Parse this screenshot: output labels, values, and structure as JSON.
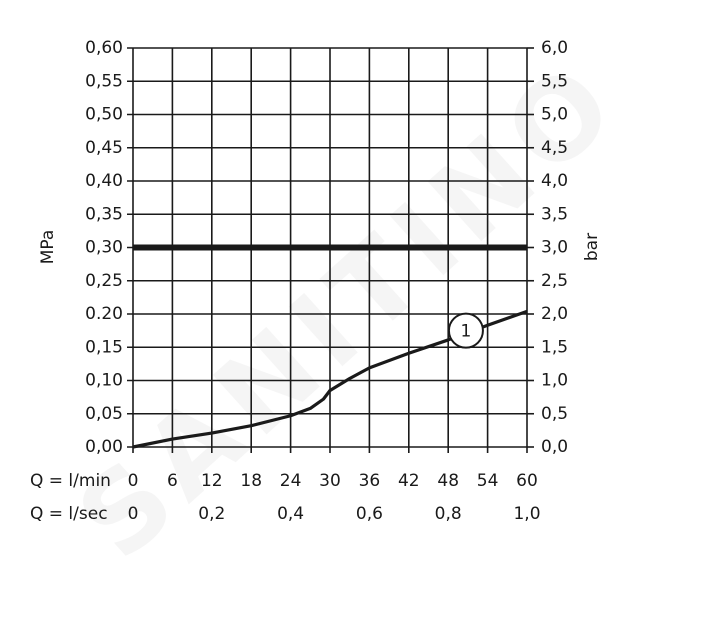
{
  "chart_data": {
    "type": "line",
    "watermark": "SANITINO",
    "ylabel": "MPa",
    "y2label": "bar",
    "xlabel": "Q = l/min",
    "x2label": "Q = l/sec",
    "xlim": [
      0,
      60
    ],
    "xticks": [
      0,
      6,
      12,
      18,
      24,
      30,
      36,
      42,
      48,
      54,
      60
    ],
    "x2lim": [
      0,
      1
    ],
    "x2ticks": [
      0,
      {
        "value": 0.2,
        "label": "0,2"
      },
      {
        "value": 0.4,
        "label": "0,4"
      },
      {
        "value": 0.6,
        "label": "0,6"
      },
      {
        "value": 0.8,
        "label": "0,8"
      },
      {
        "value": 1,
        "label": "1,0"
      }
    ],
    "ylim": [
      0,
      0.6
    ],
    "yticks": [
      {
        "value": 0,
        "label": "0,00"
      },
      {
        "value": 0.05,
        "label": "0,05"
      },
      {
        "value": 0.1,
        "label": "0,10"
      },
      {
        "value": 0.15,
        "label": "0,15"
      },
      {
        "value": 0.2,
        "label": "0.20"
      },
      {
        "value": 0.25,
        "label": "0,25"
      },
      {
        "value": 0.3,
        "label": "0,30"
      },
      {
        "value": 0.35,
        "label": "0,35"
      },
      {
        "value": 0.4,
        "label": "0,40"
      },
      {
        "value": 0.45,
        "label": "0,45"
      },
      {
        "value": 0.5,
        "label": "0,50"
      },
      {
        "value": 0.55,
        "label": "0,55"
      },
      {
        "value": 0.6,
        "label": "0,60"
      }
    ],
    "y2lim": [
      0,
      6
    ],
    "y2ticks": [
      {
        "value": 0,
        "label": "0,0"
      },
      {
        "value": 0.5,
        "label": "0,5"
      },
      {
        "value": 1,
        "label": "1,0"
      },
      {
        "value": 1.5,
        "label": "1,5"
      },
      {
        "value": 2,
        "label": "2,0"
      },
      {
        "value": 2.5,
        "label": "2,5"
      },
      {
        "value": 3,
        "label": "3,0"
      },
      {
        "value": 3.5,
        "label": "3,5"
      },
      {
        "value": 4,
        "label": "4,0"
      },
      {
        "value": 4.5,
        "label": "4,5"
      },
      {
        "value": 5,
        "label": "5,0"
      },
      {
        "value": 5.5,
        "label": "5,5"
      },
      {
        "value": 6,
        "label": "6,0"
      }
    ],
    "grid": true,
    "reference_line": {
      "y": 0.3,
      "color": "#1a1a1a"
    },
    "x": [
      0,
      6,
      12,
      18,
      24,
      27,
      29,
      30,
      33,
      36,
      42,
      48,
      54,
      60
    ],
    "series": [
      {
        "name": "1",
        "color": "#1a1a1a",
        "values": [
          0,
          0.012,
          0.021,
          0.032,
          0.047,
          0.058,
          0.072,
          0.085,
          0.103,
          0.119,
          0.141,
          0.161,
          0.183,
          0.204
        ]
      }
    ],
    "annotation": {
      "text": "1",
      "x": 50.7,
      "y": 0.175
    }
  }
}
